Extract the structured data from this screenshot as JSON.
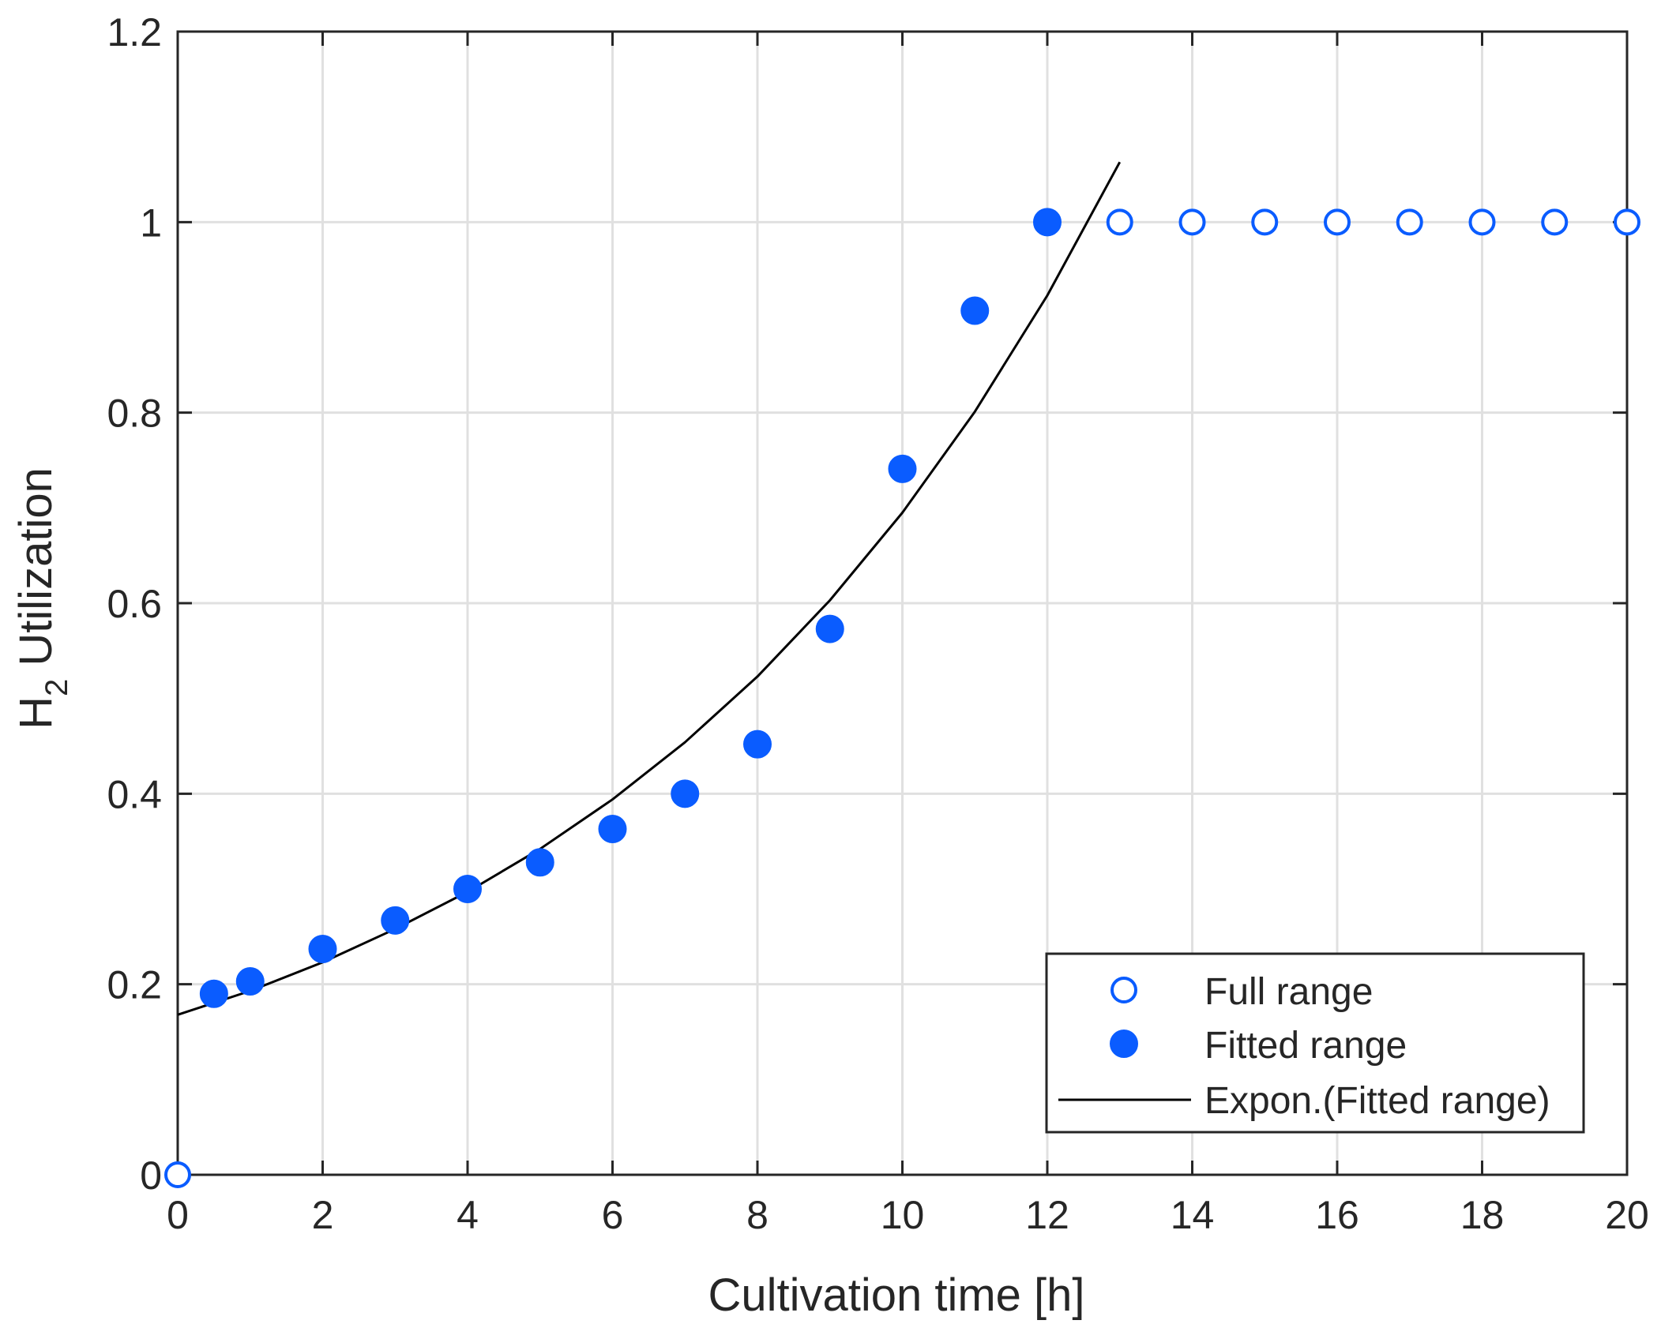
{
  "chart_data": {
    "type": "scatter",
    "title": "",
    "xlabel": "Cultivation time [h]",
    "ylabel": {
      "main": "H",
      "subscript": "2",
      "rest": " Utilization"
    },
    "xlim": [
      0,
      20
    ],
    "ylim": [
      0,
      1.2
    ],
    "xticks": [
      0,
      2,
      4,
      6,
      8,
      10,
      12,
      14,
      16,
      18,
      20
    ],
    "xtick_labels": [
      "0",
      "2",
      "4",
      "6",
      "8",
      "10",
      "12",
      "14",
      "16",
      "18",
      "20"
    ],
    "yticks": [
      0,
      0.2,
      0.4,
      0.6,
      0.8,
      1,
      1.2
    ],
    "ytick_labels": [
      "0",
      "0.2",
      "0.4",
      "0.6",
      "0.8",
      "1",
      "1.2"
    ],
    "grid": true,
    "legend_position": "bottom-right",
    "colors": {
      "marker": "#0a5cff",
      "fit_line": "#000000",
      "grid": "#e0e0e0",
      "axis": "#262626"
    },
    "series": [
      {
        "name": "Full range",
        "style": "open-circle",
        "x": [
          0,
          13,
          14,
          15,
          16,
          17,
          18,
          19,
          20
        ],
        "y": [
          0,
          1,
          1,
          1,
          1,
          1,
          1,
          1,
          1
        ]
      },
      {
        "name": "Fitted range",
        "style": "filled-circle",
        "x": [
          0.5,
          1,
          2,
          3,
          4,
          5,
          6,
          7,
          8,
          9,
          10,
          11,
          12
        ],
        "y": [
          0.19,
          0.203,
          0.237,
          0.267,
          0.3,
          0.328,
          0.363,
          0.4,
          0.452,
          0.573,
          0.741,
          0.907,
          1.0
        ]
      },
      {
        "name": "Expon.(Fitted range)",
        "style": "line",
        "x": [
          0,
          1,
          2,
          3,
          4,
          5,
          6,
          7,
          8,
          9,
          10,
          11,
          12,
          13
        ],
        "y": [
          0.168,
          0.193,
          0.223,
          0.258,
          0.297,
          0.342,
          0.394,
          0.454,
          0.523,
          0.603,
          0.695,
          0.801,
          0.923,
          1.063
        ]
      }
    ]
  }
}
